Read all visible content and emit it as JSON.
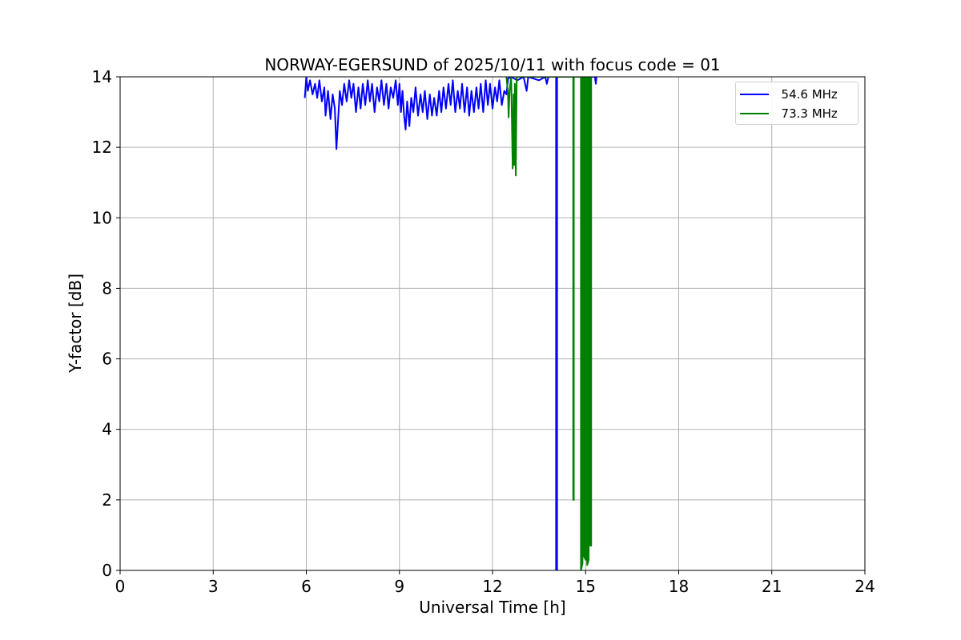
{
  "chart_data": {
    "type": "line",
    "title": "NORWAY-EGERSUND of 2025/10/11 with focus code = 01",
    "xlabel": "Universal Time [h]",
    "ylabel": "Y-factor [dB]",
    "xlim": [
      0,
      24
    ],
    "ylim": [
      0,
      14
    ],
    "xticks": [
      "0",
      "3",
      "6",
      "9",
      "12",
      "15",
      "18",
      "21",
      "24"
    ],
    "yticks": [
      "0",
      "2",
      "4",
      "6",
      "8",
      "10",
      "12",
      "14"
    ],
    "grid": true,
    "legend_position": "upper-right",
    "series": [
      {
        "name": "  54.6 MHz",
        "color": "#0000ff",
        "points": [
          [
            5.95,
            13.4
          ],
          [
            6.0,
            14.0
          ],
          [
            6.05,
            13.6
          ],
          [
            6.12,
            13.9
          ],
          [
            6.2,
            13.5
          ],
          [
            6.28,
            13.8
          ],
          [
            6.35,
            13.4
          ],
          [
            6.42,
            13.9
          ],
          [
            6.5,
            13.3
          ],
          [
            6.58,
            13.7
          ],
          [
            6.62,
            12.9
          ],
          [
            6.7,
            13.6
          ],
          [
            6.78,
            12.8
          ],
          [
            6.85,
            13.5
          ],
          [
            6.92,
            13.1
          ],
          [
            6.97,
            11.95
          ],
          [
            7.02,
            12.7
          ],
          [
            7.08,
            13.6
          ],
          [
            7.15,
            13.2
          ],
          [
            7.22,
            13.8
          ],
          [
            7.3,
            13.3
          ],
          [
            7.38,
            13.9
          ],
          [
            7.45,
            13.4
          ],
          [
            7.52,
            13.8
          ],
          [
            7.6,
            13.0
          ],
          [
            7.68,
            13.7
          ],
          [
            7.75,
            13.1
          ],
          [
            7.82,
            13.8
          ],
          [
            7.9,
            13.2
          ],
          [
            7.98,
            13.9
          ],
          [
            8.05,
            13.3
          ],
          [
            8.12,
            13.8
          ],
          [
            8.2,
            13.0
          ],
          [
            8.28,
            13.7
          ],
          [
            8.35,
            13.3
          ],
          [
            8.42,
            13.9
          ],
          [
            8.5,
            13.2
          ],
          [
            8.58,
            13.8
          ],
          [
            8.65,
            13.1
          ],
          [
            8.72,
            13.7
          ],
          [
            8.8,
            13.4
          ],
          [
            8.88,
            13.9
          ],
          [
            8.95,
            13.2
          ],
          [
            9.0,
            13.8
          ],
          [
            9.05,
            13.0
          ],
          [
            9.1,
            13.6
          ],
          [
            9.15,
            12.9
          ],
          [
            9.2,
            12.5
          ],
          [
            9.25,
            13.3
          ],
          [
            9.32,
            12.6
          ],
          [
            9.38,
            13.4
          ],
          [
            9.45,
            13.0
          ],
          [
            9.52,
            13.7
          ],
          [
            9.6,
            12.9
          ],
          [
            9.68,
            13.5
          ],
          [
            9.75,
            13.0
          ],
          [
            9.82,
            13.6
          ],
          [
            9.9,
            12.8
          ],
          [
            9.98,
            13.5
          ],
          [
            10.05,
            12.9
          ],
          [
            10.12,
            13.4
          ],
          [
            10.2,
            12.9
          ],
          [
            10.28,
            13.6
          ],
          [
            10.35,
            13.0
          ],
          [
            10.42,
            13.7
          ],
          [
            10.5,
            13.1
          ],
          [
            10.58,
            13.8
          ],
          [
            10.65,
            13.2
          ],
          [
            10.72,
            13.9
          ],
          [
            10.8,
            13.0
          ],
          [
            10.88,
            13.6
          ],
          [
            10.95,
            13.1
          ],
          [
            11.02,
            13.8
          ],
          [
            11.1,
            13.0
          ],
          [
            11.18,
            13.7
          ],
          [
            11.25,
            12.9
          ],
          [
            11.32,
            13.6
          ],
          [
            11.4,
            13.0
          ],
          [
            11.48,
            13.7
          ],
          [
            11.55,
            13.1
          ],
          [
            11.62,
            13.8
          ],
          [
            11.7,
            13.0
          ],
          [
            11.78,
            13.9
          ],
          [
            11.85,
            13.2
          ],
          [
            11.92,
            13.8
          ],
          [
            12.0,
            13.1
          ],
          [
            12.08,
            13.7
          ],
          [
            12.15,
            13.3
          ],
          [
            12.22,
            13.9
          ],
          [
            12.3,
            13.2
          ],
          [
            12.38,
            13.6
          ],
          [
            12.45,
            13.5
          ],
          [
            12.5,
            13.95
          ],
          [
            12.6,
            14.0
          ],
          [
            12.8,
            13.9
          ],
          [
            13.0,
            14.0
          ],
          [
            13.1,
            13.6
          ],
          [
            13.15,
            14.0
          ],
          [
            13.5,
            13.9
          ],
          [
            13.7,
            14.0
          ],
          [
            13.75,
            13.8
          ],
          [
            13.8,
            14.0
          ],
          [
            14.05,
            14.0
          ],
          [
            14.05,
            0.0
          ],
          [
            14.08,
            0.0
          ],
          [
            14.08,
            14.0
          ],
          [
            14.1,
            14.0
          ],
          [
            14.5,
            14.0
          ],
          [
            15.3,
            14.0
          ],
          [
            15.33,
            13.8
          ],
          [
            15.35,
            14.0
          ]
        ]
      },
      {
        "name": "  73.3 MHz",
        "color": "#008000",
        "points": [
          [
            12.45,
            14.0
          ],
          [
            12.5,
            13.5
          ],
          [
            12.52,
            12.85
          ],
          [
            12.55,
            13.6
          ],
          [
            12.6,
            14.0
          ],
          [
            12.65,
            11.4
          ],
          [
            12.68,
            13.5
          ],
          [
            12.7,
            11.5
          ],
          [
            12.72,
            13.8
          ],
          [
            12.75,
            11.2
          ],
          [
            12.78,
            14.0
          ],
          [
            14.6,
            14.0
          ],
          [
            14.6,
            2.0
          ],
          [
            14.62,
            2.0
          ],
          [
            14.62,
            14.0
          ],
          [
            14.85,
            14.0
          ],
          [
            14.85,
            0.0
          ],
          [
            14.9,
            0.2
          ],
          [
            14.9,
            14.0
          ],
          [
            14.95,
            14.0
          ],
          [
            14.95,
            0.4
          ],
          [
            15.0,
            0.3
          ],
          [
            15.0,
            14.0
          ],
          [
            15.05,
            14.0
          ],
          [
            15.05,
            0.15
          ],
          [
            15.1,
            0.3
          ],
          [
            15.1,
            14.0
          ],
          [
            15.15,
            14.0
          ],
          [
            15.15,
            0.7
          ],
          [
            15.18,
            0.7
          ],
          [
            15.18,
            14.0
          ]
        ]
      }
    ]
  }
}
